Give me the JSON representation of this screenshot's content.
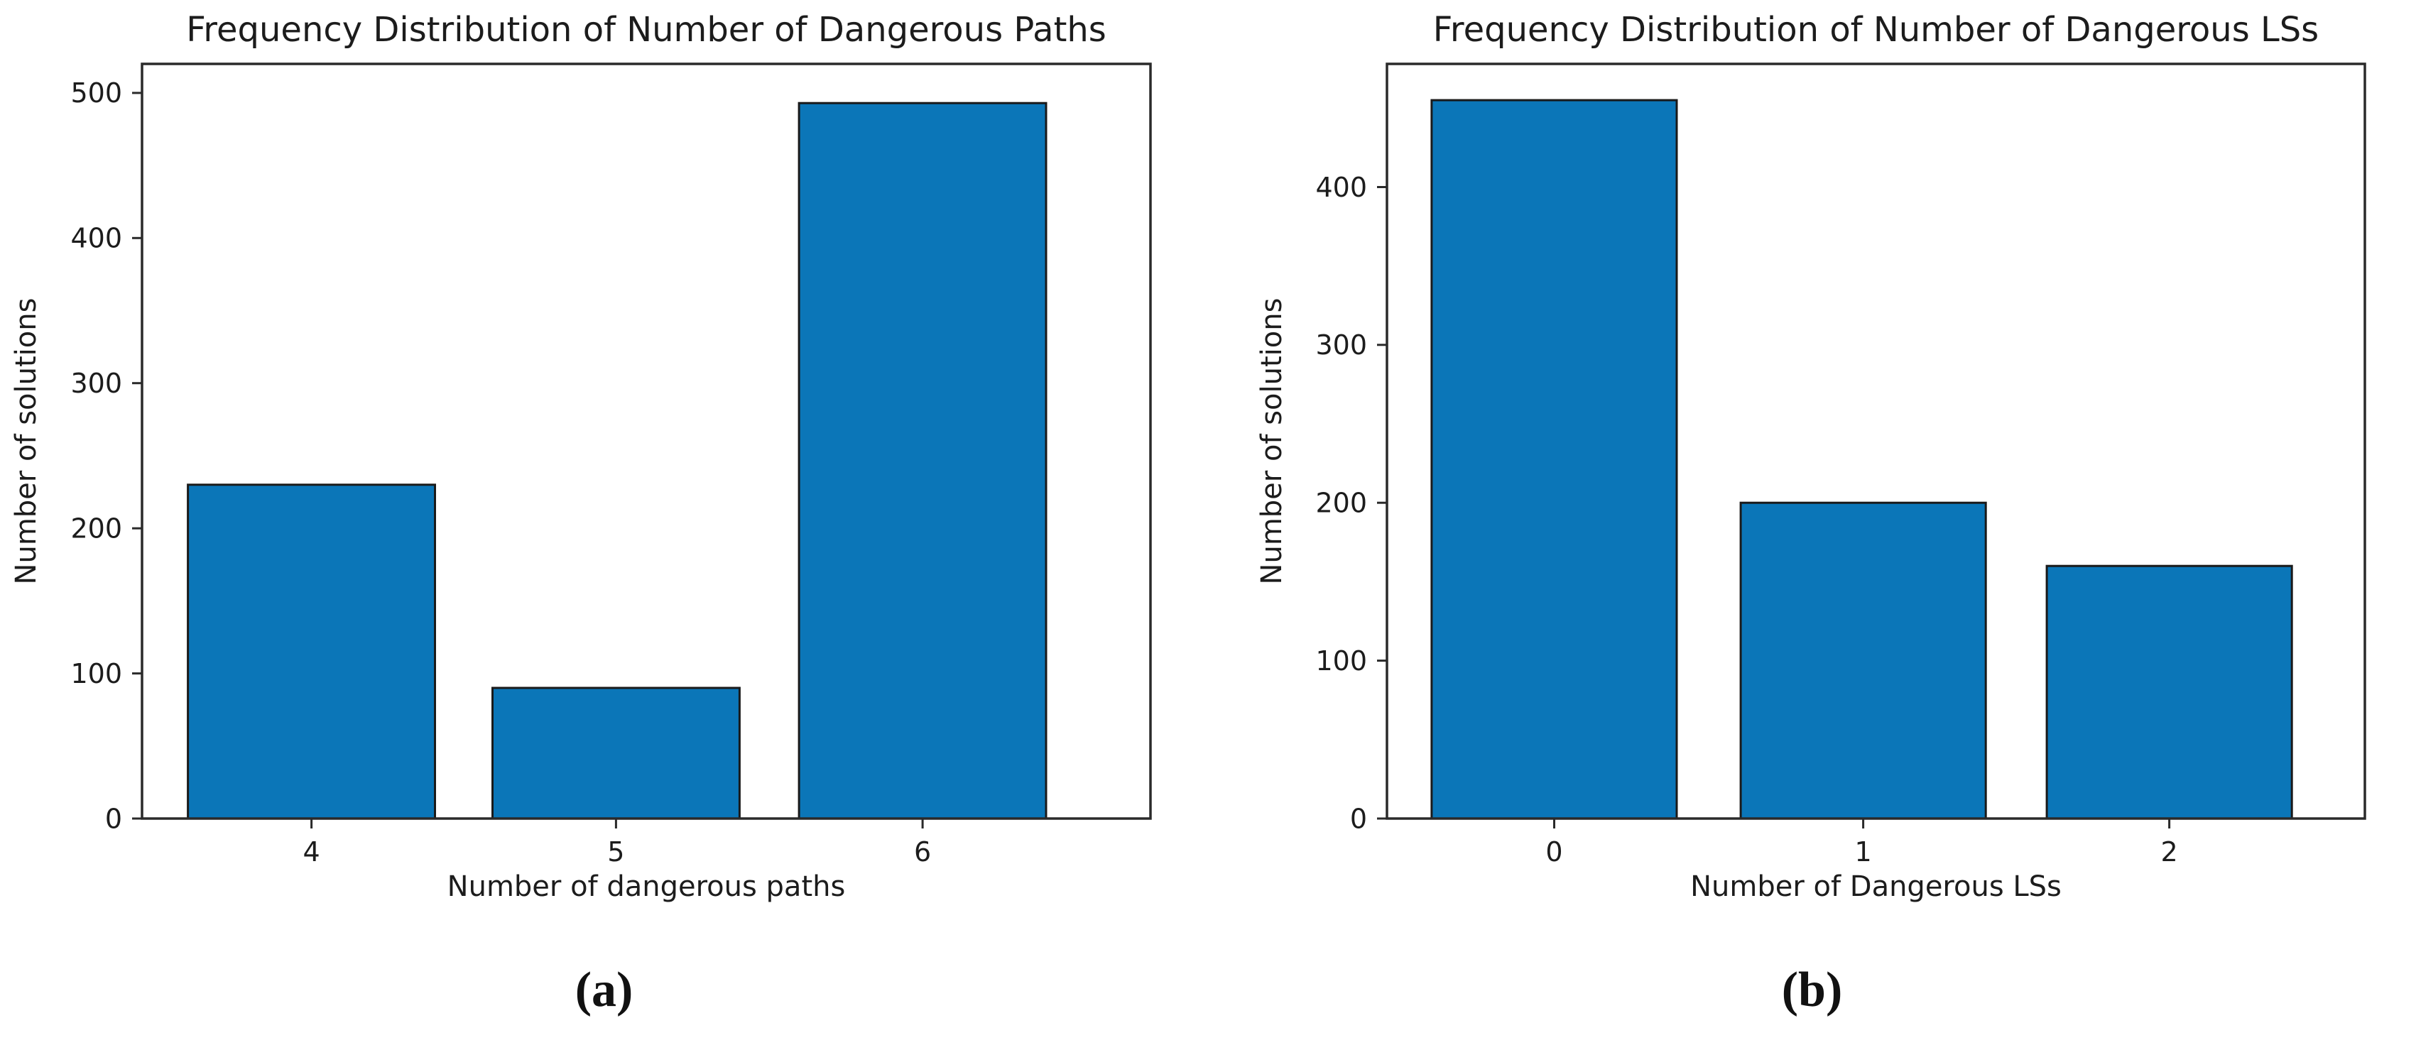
{
  "figure": {
    "panels": [
      {
        "caption": "(a)"
      },
      {
        "caption": "(b)"
      }
    ]
  },
  "chart_data": [
    {
      "type": "bar",
      "title": "Frequency Distribution of Number of Dangerous Paths",
      "xlabel": "Number of dangerous paths",
      "ylabel": "Number of solutions",
      "categories": [
        "4",
        "5",
        "6"
      ],
      "values": [
        230,
        90,
        493
      ],
      "yticks": [
        0,
        100,
        200,
        300,
        400,
        500
      ],
      "ylim": [
        0,
        520
      ],
      "grid": false,
      "legend": null,
      "bar_color": "#0b76b8",
      "bar_edge_color": "#1a1a1a",
      "spine_color": "#2a2a2a",
      "text_color": "#1c1c1c"
    },
    {
      "type": "bar",
      "title": "Frequency Distribution of Number of Dangerous LSs",
      "xlabel": "Number of Dangerous LSs",
      "ylabel": "Number of solutions",
      "categories": [
        "0",
        "1",
        "2"
      ],
      "values": [
        455,
        200,
        160
      ],
      "yticks": [
        0,
        100,
        200,
        300,
        400
      ],
      "ylim": [
        0,
        478
      ],
      "grid": false,
      "legend": null,
      "bar_color": "#0b76b8",
      "bar_edge_color": "#1a1a1a",
      "spine_color": "#2a2a2a",
      "text_color": "#1c1c1c"
    }
  ]
}
